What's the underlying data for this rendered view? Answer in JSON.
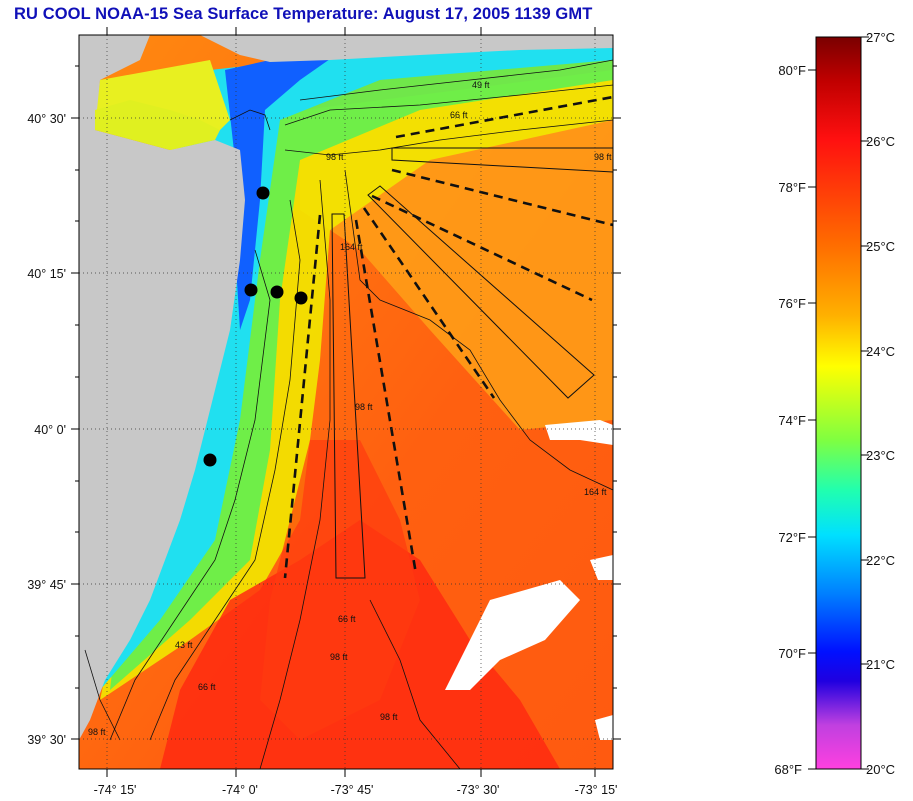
{
  "title": "RU COOL  NOAA-15  Sea Surface Temperature:  August 17, 2005 1139 GMT",
  "latitude_ticks": [
    "40° 30'",
    "40° 15'",
    "40° 0'",
    "39° 45'",
    "39° 30'"
  ],
  "longitude_ticks": [
    "-74° 15'",
    "-74° 0'",
    "-73° 45'",
    "-73° 30'",
    "-73° 15'"
  ],
  "depth_contour_labels": [
    "49 ft",
    "66 ft",
    "98 ft",
    "98 ft",
    "164 ft",
    "164 ft",
    "98 ft",
    "98 ft",
    "66 ft",
    "43 ft",
    "66 ft",
    "98 ft",
    "98 ft"
  ],
  "colorbar": {
    "fahrenheit_labels": [
      "80°F",
      "78°F",
      "76°F",
      "74°F",
      "72°F",
      "70°F",
      "68°F"
    ],
    "celsius_labels": [
      "27°C",
      "26°C",
      "25°C",
      "24°C",
      "23°C",
      "22°C",
      "21°C",
      "20°C"
    ]
  },
  "colors": {
    "land": "#c8c8c8",
    "title": "#1010b8",
    "cloud": "#ffffff"
  }
}
